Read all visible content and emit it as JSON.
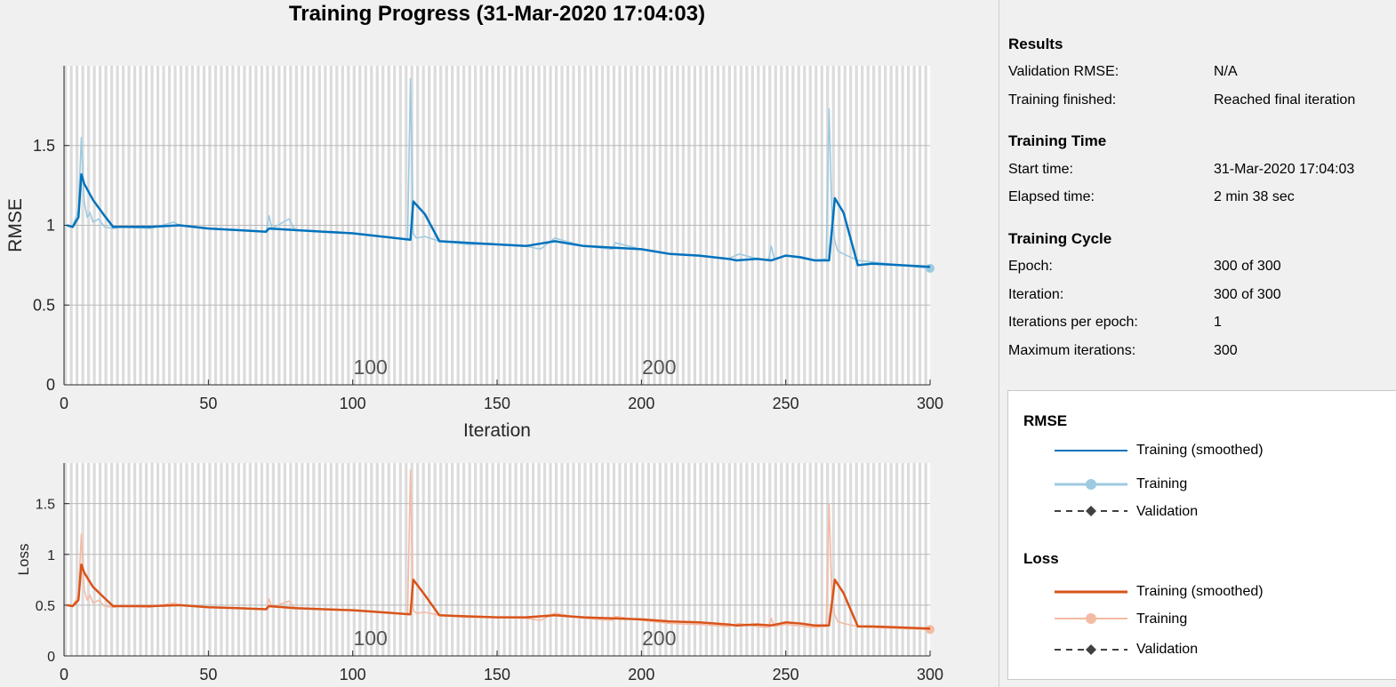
{
  "title": "Training Progress (31-Mar-2020 17:04:03)",
  "results": {
    "heading": "Results",
    "rows": [
      {
        "label": "Validation RMSE:",
        "value": "N/A"
      },
      {
        "label": "Training finished:",
        "value": "Reached final iteration"
      }
    ]
  },
  "training_time": {
    "heading": "Training Time",
    "rows": [
      {
        "label": "Start time:",
        "value": "31-Mar-2020 17:04:03"
      },
      {
        "label": "Elapsed time:",
        "value": "2 min 38 sec"
      }
    ]
  },
  "training_cycle": {
    "heading": "Training Cycle",
    "rows": [
      {
        "label": "Epoch:",
        "value": "300 of 300"
      },
      {
        "label": "Iteration:",
        "value": "300 of 300"
      },
      {
        "label": "Iterations per epoch:",
        "value": "1"
      },
      {
        "label": "Maximum iterations:",
        "value": "300"
      }
    ]
  },
  "legend": {
    "rmse_heading": "RMSE",
    "loss_heading": "Loss",
    "rmse_items": [
      {
        "label": "Training (smoothed)",
        "style": "line",
        "color": "#0072bd"
      },
      {
        "label": "Training",
        "style": "line-marker",
        "color": "#9ecae1"
      },
      {
        "label": "Validation",
        "style": "dashed-marker",
        "color": "#404040"
      }
    ],
    "loss_items": [
      {
        "label": "Training (smoothed)",
        "style": "line",
        "color": "#d95319"
      },
      {
        "label": "Training",
        "style": "line-marker",
        "color": "#f4bba4"
      },
      {
        "label": "Validation",
        "style": "dashed-marker",
        "color": "#404040"
      }
    ]
  },
  "chart_data": [
    {
      "type": "line",
      "ylabel": "RMSE",
      "xlabel": "Iteration",
      "xlim": [
        0,
        300
      ],
      "ylim": [
        0,
        2
      ],
      "xticks": [
        0,
        50,
        100,
        150,
        200,
        250,
        300
      ],
      "yticks": [
        0,
        0.5,
        1,
        1.5
      ],
      "ytick_labels": [
        "0",
        "0.5",
        "1",
        "1.5"
      ],
      "grid": true,
      "epoch_bands": true,
      "epoch_labels": [
        {
          "iteration": 100,
          "text": "100"
        },
        {
          "iteration": 200,
          "text": "200"
        }
      ],
      "colors": {
        "smoothed": "#0072bd",
        "raw": "#9ecae1"
      },
      "series": [
        {
          "name": "Training (smoothed)",
          "x": [
            1,
            3,
            5,
            6,
            7,
            10,
            14,
            17,
            30,
            40,
            50,
            60,
            70,
            71,
            80,
            90,
            100,
            110,
            120,
            121,
            125,
            130,
            140,
            150,
            160,
            170,
            180,
            190,
            200,
            210,
            220,
            230,
            233,
            240,
            245,
            250,
            255,
            260,
            265,
            267,
            270,
            275,
            280,
            290,
            300
          ],
          "y": [
            1.0,
            0.99,
            1.05,
            1.32,
            1.26,
            1.16,
            1.06,
            0.99,
            0.99,
            1.0,
            0.98,
            0.97,
            0.96,
            0.98,
            0.97,
            0.96,
            0.95,
            0.93,
            0.91,
            1.15,
            1.07,
            0.9,
            0.89,
            0.88,
            0.87,
            0.9,
            0.87,
            0.86,
            0.85,
            0.82,
            0.81,
            0.79,
            0.78,
            0.79,
            0.78,
            0.81,
            0.8,
            0.78,
            0.78,
            1.17,
            1.08,
            0.75,
            0.76,
            0.75,
            0.74
          ]
        },
        {
          "name": "Training",
          "x": [
            1,
            3,
            5,
            6,
            7,
            8,
            9,
            10,
            12,
            14,
            17,
            20,
            30,
            38,
            40,
            50,
            60,
            70,
            71,
            72,
            78,
            80,
            90,
            100,
            110,
            119,
            120,
            121,
            122,
            125,
            130,
            140,
            150,
            160,
            165,
            170,
            180,
            190,
            191,
            200,
            210,
            220,
            230,
            234,
            240,
            244,
            245,
            246,
            250,
            260,
            264,
            265,
            266,
            267,
            268,
            270,
            275,
            280,
            290,
            300
          ],
          "y": [
            1.0,
            0.99,
            1.1,
            1.55,
            1.15,
            1.05,
            1.08,
            1.02,
            1.04,
            0.99,
            0.98,
            0.99,
            0.98,
            1.02,
            1.0,
            0.98,
            0.97,
            0.96,
            1.06,
            0.98,
            1.04,
            0.97,
            0.96,
            0.95,
            0.93,
            0.91,
            1.92,
            0.95,
            0.92,
            0.93,
            0.9,
            0.88,
            0.88,
            0.87,
            0.85,
            0.92,
            0.87,
            0.85,
            0.89,
            0.85,
            0.82,
            0.81,
            0.79,
            0.82,
            0.79,
            0.78,
            0.87,
            0.79,
            0.81,
            0.78,
            0.79,
            1.73,
            1.05,
            0.9,
            0.84,
            0.82,
            0.78,
            0.77,
            0.75,
            0.73
          ]
        }
      ]
    },
    {
      "type": "line",
      "ylabel": "Loss",
      "xlabel": "",
      "xlim": [
        0,
        300
      ],
      "ylim": [
        0,
        1.9
      ],
      "xticks": [
        0,
        50,
        100,
        150,
        200,
        250,
        300
      ],
      "yticks": [
        0,
        0.5,
        1,
        1.5
      ],
      "ytick_labels": [
        "0",
        "0.5",
        "1",
        "1.5"
      ],
      "grid": true,
      "epoch_bands": true,
      "epoch_labels": [
        {
          "iteration": 100,
          "text": "100"
        },
        {
          "iteration": 200,
          "text": "200"
        }
      ],
      "colors": {
        "smoothed": "#d95319",
        "raw": "#f4bba4"
      },
      "series": [
        {
          "name": "Training (smoothed)",
          "x": [
            1,
            3,
            5,
            6,
            7,
            10,
            14,
            17,
            30,
            40,
            50,
            60,
            70,
            71,
            80,
            90,
            100,
            110,
            120,
            121,
            125,
            130,
            140,
            150,
            160,
            170,
            180,
            190,
            200,
            210,
            220,
            230,
            233,
            240,
            245,
            250,
            255,
            260,
            265,
            267,
            270,
            275,
            280,
            290,
            300
          ],
          "y": [
            0.5,
            0.49,
            0.55,
            0.9,
            0.82,
            0.68,
            0.57,
            0.49,
            0.49,
            0.5,
            0.48,
            0.47,
            0.46,
            0.49,
            0.47,
            0.46,
            0.45,
            0.43,
            0.41,
            0.75,
            0.6,
            0.4,
            0.39,
            0.38,
            0.38,
            0.4,
            0.38,
            0.37,
            0.36,
            0.34,
            0.33,
            0.31,
            0.3,
            0.31,
            0.3,
            0.33,
            0.32,
            0.3,
            0.3,
            0.75,
            0.62,
            0.29,
            0.29,
            0.28,
            0.27
          ]
        },
        {
          "name": "Training",
          "x": [
            1,
            3,
            5,
            6,
            7,
            8,
            9,
            10,
            12,
            14,
            17,
            20,
            30,
            38,
            40,
            50,
            60,
            70,
            71,
            72,
            78,
            80,
            90,
            100,
            110,
            119,
            120,
            121,
            122,
            125,
            130,
            140,
            150,
            160,
            165,
            170,
            180,
            190,
            191,
            200,
            210,
            220,
            230,
            234,
            240,
            244,
            245,
            246,
            250,
            260,
            264,
            265,
            266,
            267,
            268,
            270,
            275,
            280,
            290,
            300
          ],
          "y": [
            0.5,
            0.49,
            0.6,
            1.2,
            0.65,
            0.55,
            0.6,
            0.52,
            0.55,
            0.49,
            0.48,
            0.49,
            0.48,
            0.52,
            0.5,
            0.48,
            0.47,
            0.46,
            0.56,
            0.48,
            0.54,
            0.47,
            0.46,
            0.45,
            0.43,
            0.41,
            1.83,
            0.45,
            0.42,
            0.43,
            0.4,
            0.38,
            0.38,
            0.37,
            0.35,
            0.42,
            0.37,
            0.35,
            0.39,
            0.35,
            0.32,
            0.31,
            0.29,
            0.32,
            0.29,
            0.28,
            0.37,
            0.29,
            0.31,
            0.28,
            0.29,
            1.5,
            0.55,
            0.4,
            0.34,
            0.32,
            0.29,
            0.28,
            0.27,
            0.26
          ]
        }
      ]
    }
  ]
}
